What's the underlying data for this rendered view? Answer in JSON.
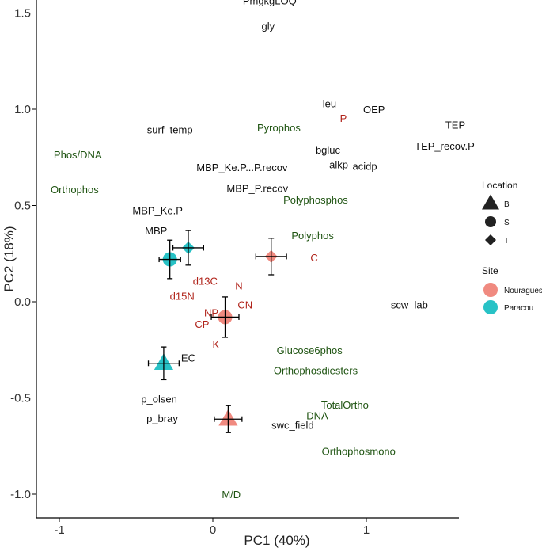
{
  "chart_data": {
    "type": "scatter",
    "subtype": "pca-biplot",
    "xlabel": "PC1 (40%)",
    "ylabel": "PC2 (18%)",
    "xlim": [
      -1.12,
      1.58
    ],
    "ylim": [
      -1.1,
      1.62
    ],
    "x_ticks": [
      {
        "value": -1,
        "label": "-1"
      },
      {
        "value": 0,
        "label": "0"
      },
      {
        "value": 1,
        "label": "1"
      }
    ],
    "y_ticks": [
      {
        "value": 1.5,
        "label": "1.5"
      },
      {
        "value": 1.0,
        "label": "1.0"
      },
      {
        "value": 0.5,
        "label": "0.5"
      },
      {
        "value": 0.0,
        "label": "0.0"
      },
      {
        "value": -0.5,
        "label": "-0.5"
      },
      {
        "value": -1.0,
        "label": "-1.0"
      }
    ],
    "grid": false,
    "label_colors": {
      "black": "#111111",
      "green": "#1f5412",
      "red": "#b0231a"
    },
    "variables": [
      {
        "name": "PmgkgLOQ",
        "x": 0.37,
        "y": 1.565,
        "group": "black"
      },
      {
        "name": "gly",
        "x": 0.36,
        "y": 1.435,
        "group": "black"
      },
      {
        "name": "leu",
        "x": 0.76,
        "y": 1.03,
        "group": "black"
      },
      {
        "name": "OEP",
        "x": 1.05,
        "y": 1.0,
        "group": "black"
      },
      {
        "name": "P",
        "x": 0.85,
        "y": 0.955,
        "group": "red"
      },
      {
        "name": "TEP",
        "x": 1.58,
        "y": 0.92,
        "group": "black"
      },
      {
        "name": "TEP_recov.P",
        "x": 1.51,
        "y": 0.81,
        "group": "black"
      },
      {
        "name": "surf_temp",
        "x": -0.28,
        "y": 0.895,
        "group": "black"
      },
      {
        "name": "Pyrophos",
        "x": 0.43,
        "y": 0.905,
        "group": "green"
      },
      {
        "name": "Phos/DNA",
        "x": -0.88,
        "y": 0.765,
        "group": "green"
      },
      {
        "name": "bgluc",
        "x": 0.75,
        "y": 0.79,
        "group": "black"
      },
      {
        "name": "alkp",
        "x": 0.82,
        "y": 0.715,
        "group": "black"
      },
      {
        "name": "acidp",
        "x": 0.99,
        "y": 0.705,
        "group": "black"
      },
      {
        "name": "MBP_Ke.P...P.recov",
        "x": 0.19,
        "y": 0.7,
        "group": "black"
      },
      {
        "name": "MBP_P.recov",
        "x": 0.29,
        "y": 0.59,
        "group": "black"
      },
      {
        "name": "Orthophos",
        "x": -0.9,
        "y": 0.585,
        "group": "green"
      },
      {
        "name": "Polyphosphos",
        "x": 0.67,
        "y": 0.53,
        "group": "green"
      },
      {
        "name": "MBP_Ke.P",
        "x": -0.36,
        "y": 0.475,
        "group": "black"
      },
      {
        "name": "MBP",
        "x": -0.37,
        "y": 0.37,
        "group": "black"
      },
      {
        "name": "Polyphos",
        "x": 0.65,
        "y": 0.345,
        "group": "green"
      },
      {
        "name": "C",
        "x": 0.66,
        "y": 0.23,
        "group": "red"
      },
      {
        "name": "d13C",
        "x": -0.05,
        "y": 0.11,
        "group": "red"
      },
      {
        "name": "N",
        "x": 0.17,
        "y": 0.085,
        "group": "red"
      },
      {
        "name": "d15N",
        "x": -0.2,
        "y": 0.03,
        "group": "red"
      },
      {
        "name": "CN",
        "x": 0.21,
        "y": -0.015,
        "group": "red"
      },
      {
        "name": "NP",
        "x": -0.01,
        "y": -0.055,
        "group": "red"
      },
      {
        "name": "CP",
        "x": -0.07,
        "y": -0.115,
        "group": "red"
      },
      {
        "name": "scw_lab",
        "x": 1.28,
        "y": -0.015,
        "group": "black"
      },
      {
        "name": "K",
        "x": 0.02,
        "y": -0.22,
        "group": "red"
      },
      {
        "name": "Glucose6phos",
        "x": 0.63,
        "y": -0.25,
        "group": "green"
      },
      {
        "name": "EC",
        "x": -0.16,
        "y": -0.29,
        "group": "black"
      },
      {
        "name": "Orthophosdiesters",
        "x": 0.67,
        "y": -0.355,
        "group": "green"
      },
      {
        "name": "p_olsen",
        "x": -0.35,
        "y": -0.505,
        "group": "black"
      },
      {
        "name": "TotalOrtho",
        "x": 0.86,
        "y": -0.535,
        "group": "green"
      },
      {
        "name": "DNA",
        "x": 0.68,
        "y": -0.59,
        "group": "green"
      },
      {
        "name": "p_bray",
        "x": -0.33,
        "y": -0.605,
        "group": "black"
      },
      {
        "name": "swc_field",
        "x": 0.52,
        "y": -0.64,
        "group": "black"
      },
      {
        "name": "Orthophosmono",
        "x": 0.95,
        "y": -0.775,
        "group": "green"
      },
      {
        "name": "M/D",
        "x": 0.12,
        "y": -1.0,
        "group": "green"
      }
    ],
    "centroids": [
      {
        "site": "Paracou",
        "location": "S",
        "x": -0.28,
        "y": 0.22,
        "x_err": 0.07,
        "y_err": 0.1
      },
      {
        "site": "Paracou",
        "location": "T",
        "x": -0.16,
        "y": 0.28,
        "x_err": 0.1,
        "y_err": 0.09
      },
      {
        "site": "Paracou",
        "location": "B",
        "x": -0.32,
        "y": -0.32,
        "x_err": 0.1,
        "y_err": 0.085
      },
      {
        "site": "Nouragues",
        "location": "T",
        "x": 0.38,
        "y": 0.235,
        "x_err": 0.1,
        "y_err": 0.095
      },
      {
        "site": "Nouragues",
        "location": "S",
        "x": 0.08,
        "y": -0.08,
        "x_err": 0.09,
        "y_err": 0.105
      },
      {
        "site": "Nouragues",
        "location": "B",
        "x": 0.1,
        "y": -0.61,
        "x_err": 0.09,
        "y_err": 0.07
      }
    ],
    "legend": {
      "placement": "right",
      "location": {
        "title": "Location",
        "items": [
          {
            "label": "B",
            "shape": "triangle"
          },
          {
            "label": "S",
            "shape": "circle"
          },
          {
            "label": "T",
            "shape": "diamond"
          }
        ]
      },
      "site": {
        "title": "Site",
        "items": [
          {
            "label": "Nouragues",
            "color": "#f08a80"
          },
          {
            "label": "Paracou",
            "color": "#28c2c6"
          }
        ]
      }
    }
  }
}
